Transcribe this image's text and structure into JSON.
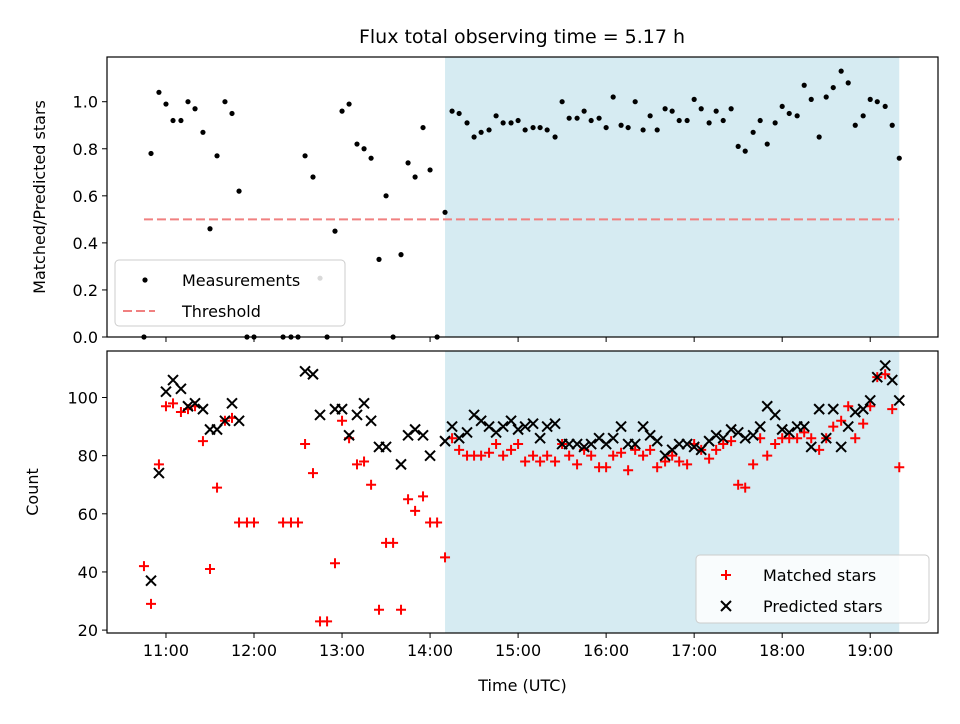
{
  "chart_data": [
    {
      "type": "scatter",
      "title": "Flux total observing time = 5.17 h",
      "ylabel": "Matched/Predicted stars",
      "xlabel": "",
      "ylim": [
        0,
        1.19
      ],
      "xlim": [
        10.33,
        19.77
      ],
      "shaded_region": [
        14.17,
        19.33
      ],
      "threshold": 0.5,
      "yticks": [
        "0.0",
        "0.2",
        "0.4",
        "0.6",
        "0.8",
        "1.0"
      ],
      "legend": {
        "location": "lower-left",
        "entries": [
          "Measurements",
          "Threshold"
        ]
      },
      "series": [
        {
          "name": "Measurements",
          "x": [
            10.75,
            10.83,
            10.92,
            11.0,
            11.08,
            11.17,
            11.25,
            11.33,
            11.42,
            11.5,
            11.58,
            11.67,
            11.75,
            11.83,
            11.92,
            12.0,
            12.33,
            12.42,
            12.5,
            12.58,
            12.67,
            12.75,
            12.83,
            12.92,
            13.0,
            13.08,
            13.17,
            13.25,
            13.33,
            13.42,
            13.5,
            13.58,
            13.67,
            13.75,
            13.83,
            13.92,
            14.0,
            14.08,
            14.17,
            14.25,
            14.33,
            14.42,
            14.5,
            14.58,
            14.67,
            14.75,
            14.83,
            14.92,
            15.0,
            15.08,
            15.17,
            15.25,
            15.33,
            15.42,
            15.5,
            15.58,
            15.67,
            15.75,
            15.83,
            15.92,
            16.0,
            16.08,
            16.17,
            16.25,
            16.33,
            16.42,
            16.5,
            16.58,
            16.67,
            16.75,
            16.83,
            16.92,
            17.0,
            17.08,
            17.17,
            17.25,
            17.33,
            17.42,
            17.5,
            17.58,
            17.67,
            17.75,
            17.83,
            17.92,
            18.0,
            18.08,
            18.17,
            18.25,
            18.33,
            18.42,
            18.5,
            18.58,
            18.67,
            18.75,
            18.83,
            18.92,
            19.0,
            19.08,
            19.17,
            19.25,
            19.33
          ],
          "y": [
            0.0,
            0.78,
            1.04,
            0.99,
            0.92,
            0.92,
            1.0,
            0.97,
            0.87,
            0.46,
            0.77,
            1.0,
            0.95,
            0.62,
            0.0,
            0.0,
            0.0,
            0.0,
            0.0,
            0.77,
            0.68,
            0.25,
            0.0,
            0.45,
            0.96,
            0.99,
            0.82,
            0.8,
            0.76,
            0.33,
            0.6,
            0.0,
            0.35,
            0.74,
            0.68,
            0.89,
            0.71,
            0.0,
            0.53,
            0.96,
            0.95,
            0.91,
            0.85,
            0.87,
            0.88,
            0.94,
            0.91,
            0.91,
            0.92,
            0.88,
            0.89,
            0.89,
            0.88,
            0.85,
            1.0,
            0.93,
            0.93,
            0.96,
            0.92,
            0.93,
            0.89,
            1.02,
            0.9,
            0.89,
            1.0,
            0.88,
            0.94,
            0.88,
            0.97,
            0.96,
            0.92,
            0.92,
            1.01,
            0.97,
            0.91,
            0.96,
            0.92,
            0.97,
            0.81,
            0.79,
            0.87,
            0.92,
            0.82,
            0.91,
            0.98,
            0.95,
            0.94,
            1.07,
            1.01,
            0.85,
            1.02,
            1.06,
            1.13,
            1.08,
            0.9,
            0.94,
            1.01,
            1.0,
            0.98,
            0.9,
            0.76
          ]
        }
      ]
    },
    {
      "type": "scatter",
      "xlabel": "Time (UTC)",
      "ylabel": "Count",
      "ylim": [
        19,
        116
      ],
      "xlim": [
        10.33,
        19.77
      ],
      "shaded_region": [
        14.17,
        19.33
      ],
      "xticks": [
        "11:00",
        "12:00",
        "13:00",
        "14:00",
        "15:00",
        "16:00",
        "17:00",
        "18:00",
        "19:00"
      ],
      "yticks": [
        "20",
        "40",
        "60",
        "80",
        "100"
      ],
      "legend": {
        "location": "lower-right",
        "entries": [
          "Matched stars",
          "Predicted stars"
        ]
      },
      "series": [
        {
          "name": "Matched stars",
          "marker": "+",
          "x": [
            10.75,
            10.83,
            10.92,
            11.0,
            11.08,
            11.17,
            11.25,
            11.33,
            11.42,
            11.5,
            11.58,
            11.67,
            11.75,
            11.83,
            11.92,
            12.0,
            12.33,
            12.42,
            12.5,
            12.58,
            12.67,
            12.75,
            12.83,
            12.92,
            13.0,
            13.08,
            13.17,
            13.25,
            13.33,
            13.42,
            13.5,
            13.58,
            13.67,
            13.75,
            13.83,
            13.92,
            14.0,
            14.08,
            14.17,
            14.25,
            14.33,
            14.42,
            14.5,
            14.58,
            14.67,
            14.75,
            14.83,
            14.92,
            15.0,
            15.08,
            15.17,
            15.25,
            15.33,
            15.42,
            15.5,
            15.58,
            15.67,
            15.75,
            15.83,
            15.92,
            16.0,
            16.08,
            16.17,
            16.25,
            16.33,
            16.42,
            16.5,
            16.58,
            16.67,
            16.75,
            16.83,
            16.92,
            17.0,
            17.08,
            17.17,
            17.25,
            17.33,
            17.42,
            17.5,
            17.58,
            17.67,
            17.75,
            17.83,
            17.92,
            18.0,
            18.08,
            18.17,
            18.25,
            18.33,
            18.42,
            18.5,
            18.58,
            18.67,
            18.75,
            18.83,
            18.92,
            19.0,
            19.08,
            19.17,
            19.25,
            19.33
          ],
          "y": [
            42,
            29,
            77,
            97,
            98,
            95,
            96,
            97,
            85,
            41,
            69,
            92,
            93,
            57,
            57,
            57,
            57,
            57,
            57,
            84,
            74,
            23,
            23,
            43,
            92,
            86,
            77,
            78,
            70,
            27,
            50,
            50,
            27,
            65,
            61,
            66,
            57,
            57,
            45,
            86,
            82,
            80,
            80,
            80,
            81,
            84,
            80,
            82,
            84,
            78,
            80,
            78,
            80,
            78,
            84,
            80,
            77,
            82,
            80,
            76,
            76,
            80,
            81,
            75,
            82,
            80,
            82,
            76,
            78,
            80,
            78,
            77,
            84,
            82,
            79,
            82,
            84,
            85,
            70,
            69,
            77,
            86,
            80,
            84,
            86,
            86,
            86,
            88,
            86,
            82,
            86,
            90,
            92,
            97,
            86,
            91,
            97,
            107,
            108,
            96,
            76
          ]
        },
        {
          "name": "Predicted stars",
          "marker": "x",
          "x": [
            10.75,
            10.83,
            10.92,
            11.0,
            11.08,
            11.17,
            11.25,
            11.33,
            11.42,
            11.5,
            11.58,
            11.67,
            11.75,
            11.83,
            11.92,
            12.0,
            12.33,
            12.42,
            12.5,
            12.58,
            12.67,
            12.75,
            12.83,
            12.92,
            13.0,
            13.08,
            13.17,
            13.25,
            13.33,
            13.42,
            13.5,
            13.58,
            13.67,
            13.75,
            13.83,
            13.92,
            14.0,
            14.08,
            14.17,
            14.25,
            14.33,
            14.42,
            14.5,
            14.58,
            14.67,
            14.75,
            14.83,
            14.92,
            15.0,
            15.08,
            15.17,
            15.25,
            15.33,
            15.42,
            15.5,
            15.58,
            15.67,
            15.75,
            15.83,
            15.92,
            16.0,
            16.08,
            16.17,
            16.25,
            16.33,
            16.42,
            16.5,
            16.58,
            16.67,
            16.75,
            16.83,
            16.92,
            17.0,
            17.08,
            17.17,
            17.25,
            17.33,
            17.42,
            17.5,
            17.58,
            17.67,
            17.75,
            17.83,
            17.92,
            18.0,
            18.08,
            18.17,
            18.25,
            18.33,
            18.42,
            18.5,
            18.58,
            18.67,
            18.75,
            18.83,
            18.92,
            19.0,
            19.08,
            19.17,
            19.25,
            19.33
          ],
          "y": [
            null,
            37,
            74,
            102,
            106,
            103,
            97,
            98,
            96,
            89,
            89,
            92,
            98,
            92,
            null,
            null,
            null,
            null,
            null,
            109,
            108,
            94,
            null,
            96,
            96,
            87,
            94,
            98,
            92,
            83,
            83,
            null,
            77,
            87,
            89,
            87,
            80,
            null,
            85,
            90,
            86,
            88,
            94,
            92,
            90,
            88,
            90,
            92,
            89,
            90,
            91,
            86,
            90,
            91,
            84,
            84,
            84,
            83,
            84,
            86,
            84,
            86,
            90,
            84,
            84,
            90,
            87,
            85,
            80,
            82,
            84,
            84,
            83,
            82,
            85,
            87,
            86,
            89,
            88,
            86,
            87,
            90,
            97,
            94,
            89,
            88,
            90,
            90,
            83,
            96,
            86,
            96,
            83,
            90,
            95,
            96,
            99,
            107,
            111,
            106,
            99
          ]
        }
      ]
    }
  ]
}
